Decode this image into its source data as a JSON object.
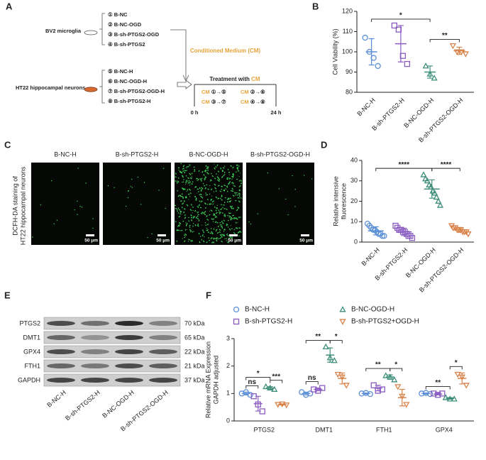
{
  "panel_labels": [
    "A",
    "B",
    "C",
    "D",
    "E",
    "F"
  ],
  "diagram": {
    "bv2": "BV2 microglia",
    "bv2_groups": [
      "① B-NC",
      "② B-NC-OGD",
      "③ B-sh-PTGS2-OGD",
      "④ B-sh-PTGS2"
    ],
    "cm": "Conditioned Medium (CM)",
    "ht22": "HT22 hippocampal neurons",
    "ht22_groups": [
      "⑤ B-NC-H",
      "⑥ B-NC-OGD-H",
      "⑦ B-sh-PTGS2-OGD-H",
      "⑧ B-sh-PTGS2-H"
    ],
    "treatment": "Treatment with ",
    "treatment_cm": "CM",
    "pairs": [
      {
        "prefix": "CM",
        "text": " ①→⑤"
      },
      {
        "prefix": "CM",
        "text": " ②→⑥"
      },
      {
        "prefix": "CM",
        "text": " ③→⑦"
      },
      {
        "prefix": "CM",
        "text": " ④→⑧"
      }
    ],
    "times": [
      "0 h",
      "24 h"
    ]
  },
  "micrographs": {
    "ylabel": [
      "DCFH-DA staining of",
      "HT22 hippocampal neurons"
    ],
    "titles": [
      "B-NC-H",
      "B-sh-PTGS2-H",
      "B-NC-OGD-H",
      "B-sh-PTGS2-OGD-H"
    ],
    "scale_bar": "50 μm"
  },
  "blot": {
    "proteins": [
      "PTGS2",
      "DMT1",
      "GPX4",
      "FTH1",
      "GAPDH"
    ],
    "sizes": [
      "70 kDa",
      "65 kDa",
      "22 kDa",
      "21 kDa",
      "37 kDa"
    ],
    "lanes": [
      "B-NC-H",
      "B-sh-PTGS2-H",
      "B-NC-OGD-H",
      "B-sh-PTGS2-OGD-H"
    ]
  },
  "chart_data": [
    {
      "type": "dot",
      "ylabel": "Cell Viability (%)",
      "ylim": [
        80,
        120
      ],
      "yticks": [
        80,
        90,
        100,
        110,
        120
      ],
      "groups": [
        {
          "name": "B-NC-H",
          "color": "#5b8fd6",
          "marker": "circle",
          "points": [
            107,
            100,
            97,
            93
          ],
          "mean": 100,
          "sd": 6.5
        },
        {
          "name": "B-sh-PTGS2-H",
          "color": "#8a5cc2",
          "marker": "square",
          "points": [
            113,
            111,
            98,
            94
          ],
          "mean": 104,
          "sd": 9
        },
        {
          "name": "B-NC-OGD-H",
          "color": "#3f8f7a",
          "marker": "triangle",
          "points": [
            93,
            89,
            87
          ],
          "mean": 90,
          "sd": 3
        },
        {
          "name": "B-sh-PTGS2-OGD-H",
          "color": "#d9824a",
          "marker": "triangle-down",
          "points": [
            103,
            100,
            100,
            99
          ],
          "mean": 100.5,
          "sd": 1.8
        }
      ],
      "annotations": [
        {
          "text": "*",
          "from": 0,
          "to": 2
        },
        {
          "text": "**",
          "from": 2,
          "to": 3
        }
      ]
    },
    {
      "type": "dot",
      "ylabel": [
        "Relative intensive",
        "fluorescence"
      ],
      "ylim": [
        0,
        40
      ],
      "yticks": [
        0,
        10,
        20,
        30,
        40
      ],
      "groups": [
        {
          "name": "B-NC-H",
          "color": "#5b8fd6",
          "marker": "circle",
          "points": [
            9,
            8,
            7,
            6,
            6,
            5,
            4,
            4,
            3,
            3
          ],
          "mean": 5.5,
          "sd": 2
        },
        {
          "name": "B-sh-PTGS2-H",
          "color": "#8a5cc2",
          "marker": "square",
          "points": [
            8,
            7,
            6,
            6,
            5,
            5,
            4,
            3,
            3,
            2
          ],
          "mean": 5,
          "sd": 1.8
        },
        {
          "name": "B-NC-OGD-H",
          "color": "#3f8f7a",
          "marker": "triangle",
          "points": [
            33,
            31,
            30,
            28,
            27,
            25,
            24,
            22,
            20,
            18
          ],
          "mean": 26,
          "sd": 4.5
        },
        {
          "name": "B-sh-PTGS2-OGD-H",
          "color": "#d9824a",
          "marker": "triangle-down",
          "points": [
            8,
            7,
            7,
            6,
            6,
            6,
            5,
            5,
            5,
            4
          ],
          "mean": 6,
          "sd": 1.2
        }
      ],
      "annotations": [
        {
          "text": "****",
          "from": 0,
          "to": 2
        },
        {
          "text": "****",
          "from": 2,
          "to": 3
        }
      ]
    },
    {
      "type": "grouped-dot",
      "ylabel": [
        "Relative mRNA Expression",
        "GAPDH adjusted"
      ],
      "ylim": [
        0,
        3
      ],
      "yticks": [
        0,
        1,
        2,
        3
      ],
      "categories": [
        "PTGS2",
        "DMT1",
        "FTH1",
        "GPX4"
      ],
      "series": [
        {
          "name": "B-NC-H",
          "color": "#5b8fd6",
          "marker": "circle",
          "points": [
            [
              1.0,
              1.05,
              0.95
            ],
            [
              1.05,
              0.95,
              1.0
            ],
            [
              1.0,
              1.02,
              0.98
            ],
            [
              1.0,
              1.02,
              0.98
            ]
          ],
          "mean": [
            1.0,
            1.0,
            1.0,
            1.0
          ],
          "sd": [
            0.05,
            0.05,
            0.02,
            0.02
          ]
        },
        {
          "name": "B-sh-PTGS2-H",
          "color": "#8a5cc2",
          "marker": "square",
          "points": [
            [
              0.9,
              0.6,
              0.35
            ],
            [
              1.15,
              1.1,
              1.2
            ],
            [
              1.3,
              1.1,
              1.15
            ],
            [
              1.0,
              0.95,
              1.0
            ]
          ],
          "mean": [
            0.63,
            1.15,
            1.2,
            0.98
          ],
          "sd": [
            0.27,
            0.05,
            0.1,
            0.03
          ]
        },
        {
          "name": "B-NC-OGD-H",
          "color": "#3f8f7a",
          "marker": "triangle",
          "points": [
            [
              1.25,
              1.2,
              1.15
            ],
            [
              2.7,
              2.3,
              2.2
            ],
            [
              1.65,
              1.6,
              1.5
            ],
            [
              0.85,
              0.8,
              0.8
            ]
          ],
          "mean": [
            1.2,
            2.4,
            1.6,
            0.82
          ],
          "sd": [
            0.05,
            0.26,
            0.08,
            0.03
          ]
        },
        {
          "name": "B-sh-PTGS2+OGD-H",
          "color": "#d9824a",
          "marker": "triangle-down",
          "points": [
            [
              0.6,
              0.62,
              0.58
            ],
            [
              1.7,
              1.6,
              1.3
            ],
            [
              1.25,
              0.9,
              0.6
            ],
            [
              1.7,
              1.6,
              1.3
            ]
          ],
          "mean": [
            0.6,
            1.55,
            0.85,
            1.55
          ],
          "sd": [
            0.02,
            0.2,
            0.3,
            0.2
          ]
        }
      ],
      "annotations": [
        {
          "text": "ns",
          "category": 0,
          "from": 0,
          "to": 1
        },
        {
          "text": "*",
          "category": 0,
          "from": 0,
          "to": 2
        },
        {
          "text": "***",
          "category": 0,
          "from": 2,
          "to": 3
        },
        {
          "text": "ns",
          "category": 1,
          "from": 0,
          "to": 1
        },
        {
          "text": "**",
          "category": 1,
          "from": 0,
          "to": 2
        },
        {
          "text": "*",
          "category": 1,
          "from": 2,
          "to": 3
        },
        {
          "text": "**",
          "category": 2,
          "from": 0,
          "to": 2
        },
        {
          "text": "*",
          "category": 2,
          "from": 2,
          "to": 3
        },
        {
          "text": "**",
          "category": 3,
          "from": 0,
          "to": 2
        },
        {
          "text": "*",
          "category": 3,
          "from": 2,
          "to": 3
        }
      ]
    }
  ]
}
